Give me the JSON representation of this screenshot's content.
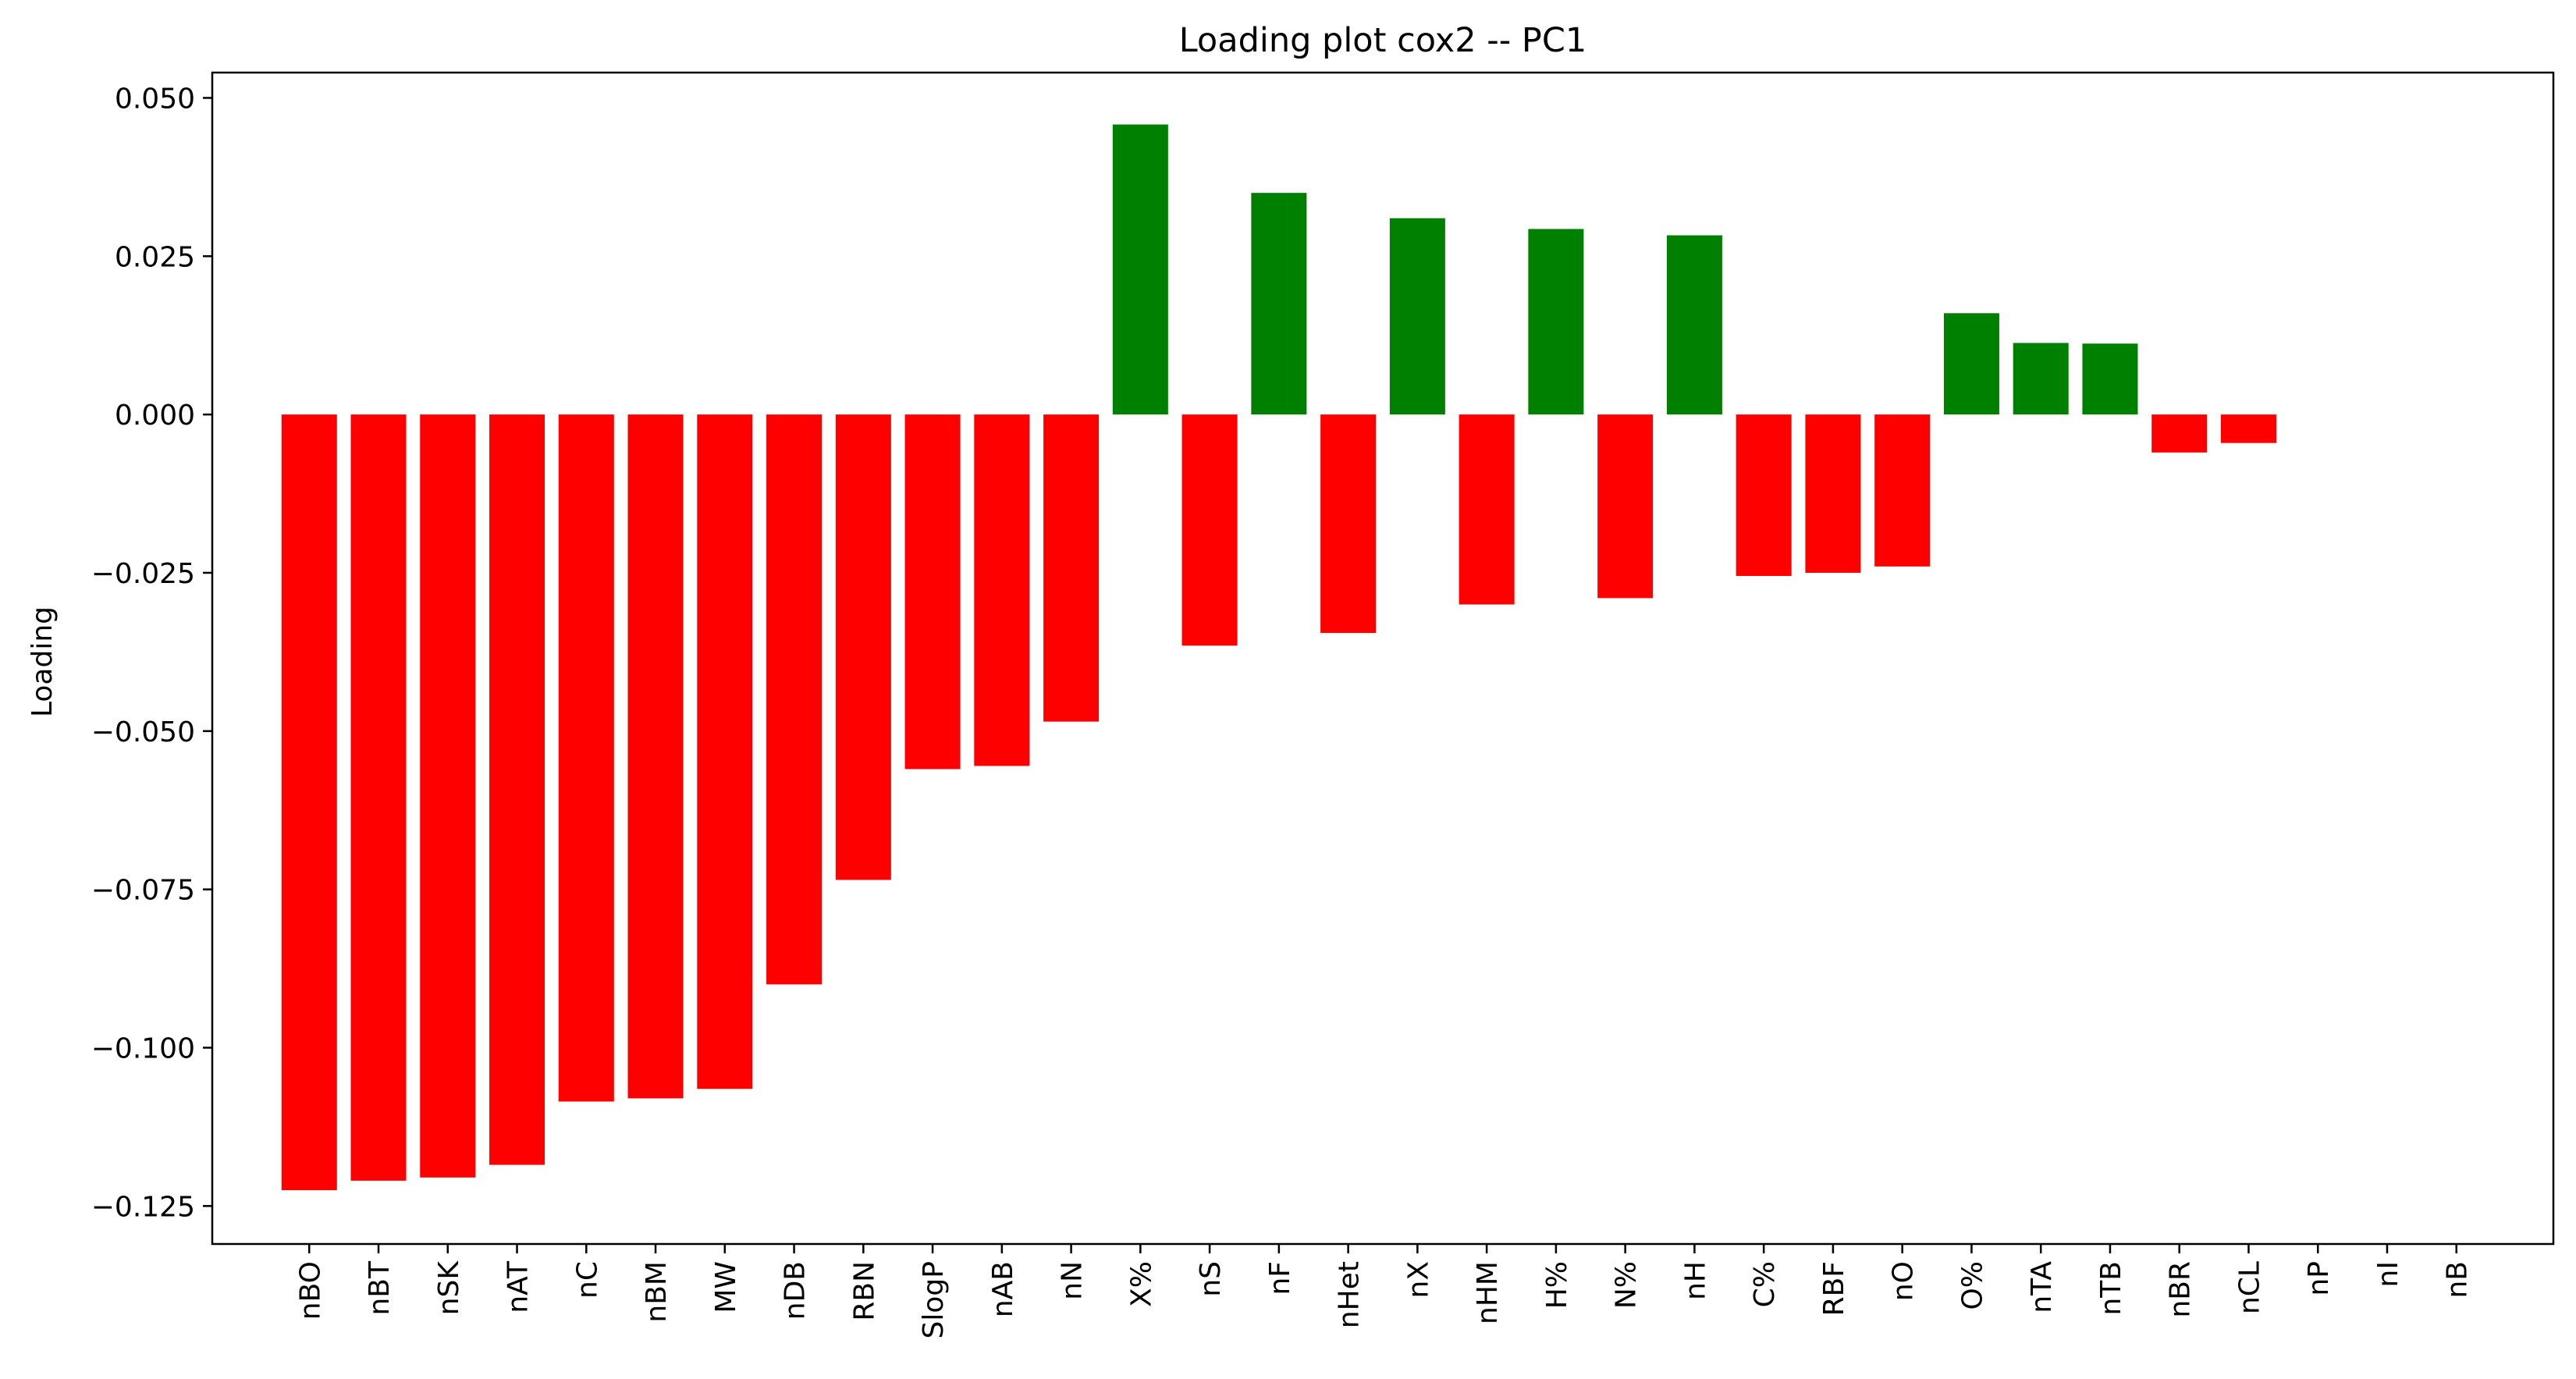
{
  "chart_data": {
    "type": "bar",
    "title": "Loading plot cox2 -- PC1",
    "xlabel": "",
    "ylabel": "Loading",
    "ylim": [
      -0.131,
      0.054
    ],
    "yticks": [
      0.05,
      0.025,
      0.0,
      -0.025,
      -0.05,
      -0.075,
      -0.1,
      -0.125
    ],
    "ytick_labels": [
      "0.050",
      "0.025",
      "0.000",
      "−0.025",
      "−0.050",
      "−0.075",
      "−0.100",
      "−0.125"
    ],
    "grid": false,
    "colors": {
      "positive": "#008000",
      "negative": "#ff0000"
    },
    "categories": [
      "nBO",
      "nBT",
      "nSK",
      "nAT",
      "nC",
      "nBM",
      "MW",
      "nDB",
      "RBN",
      "SlogP",
      "nAB",
      "nN",
      "X%",
      "nS",
      "nF",
      "nHet",
      "nX",
      "nHM",
      "H%",
      "N%",
      "nH",
      "C%",
      "RBF",
      "nO",
      "O%",
      "nTA",
      "nTB",
      "nBR",
      "nCL",
      "nP",
      "nI",
      "nB"
    ],
    "values": [
      -0.1225,
      -0.121,
      -0.1205,
      -0.1185,
      -0.1085,
      -0.108,
      -0.1065,
      -0.09,
      -0.0735,
      -0.056,
      -0.0555,
      -0.0485,
      0.0458,
      -0.0365,
      0.035,
      -0.0345,
      0.031,
      -0.03,
      0.0293,
      -0.029,
      0.0283,
      -0.0255,
      -0.025,
      -0.024,
      0.016,
      0.0113,
      0.0112,
      -0.006,
      -0.0045,
      0.0,
      0.0,
      0.0
    ]
  }
}
